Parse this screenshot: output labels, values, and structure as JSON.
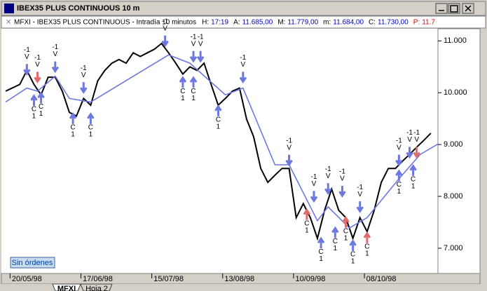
{
  "window": {
    "title": "IBEX35 PLUS CONTINUOUS 10 m"
  },
  "header": {
    "name": "MFXI - IBEX35 PLUS CONTINUOUS - Intradía 10 minutos",
    "fields": [
      {
        "label": "H:",
        "value": "17:19"
      },
      {
        "label": "A:",
        "value": "11.685,00"
      },
      {
        "label": "M:",
        "value": "11.779,00"
      },
      {
        "label": "m:",
        "value": "11.684,00"
      },
      {
        "label": "C:",
        "value": "11.730,00"
      },
      {
        "label": "P:",
        "value": "11.7"
      }
    ]
  },
  "chart_data": {
    "type": "line",
    "xlim": [
      0,
      122
    ],
    "xticks": [
      {
        "value": 6,
        "label": "20/05/98"
      },
      {
        "value": 26,
        "label": "17/06/98"
      },
      {
        "value": 46,
        "label": "15/07/98"
      },
      {
        "value": 66,
        "label": "13/08/98"
      },
      {
        "value": 86,
        "label": "10/09/98"
      },
      {
        "value": 106,
        "label": "08/10/98"
      }
    ],
    "ylim": [
      6540,
      11180
    ],
    "yticks": [
      {
        "value": 7000,
        "label": "7.000"
      },
      {
        "value": 8000,
        "label": "8.000"
      },
      {
        "value": 9000,
        "label": "9.000"
      },
      {
        "value": 10000,
        "label": "10.000"
      },
      {
        "value": 11000,
        "label": "11.000"
      }
    ],
    "series": [
      {
        "color": "#000000",
        "x": [
          0,
          4,
          6,
          8,
          10,
          12,
          14,
          16,
          18,
          20,
          22,
          24,
          26,
          28,
          30,
          32,
          34,
          36,
          38,
          40,
          42,
          44,
          46,
          48,
          50,
          52,
          54,
          56,
          58,
          60,
          62,
          64,
          66,
          68,
          70,
          72,
          74,
          76,
          78,
          80,
          82,
          84,
          86,
          88,
          90,
          92,
          94,
          96,
          98,
          100,
          102,
          104,
          106,
          108,
          110,
          112,
          114,
          116,
          118,
          120
        ],
        "values": [
          10030,
          10160,
          10430,
          10160,
          9960,
          10300,
          10300,
          10030,
          9620,
          9550,
          9890,
          9760,
          10230,
          10430,
          10570,
          10640,
          10570,
          10770,
          10700,
          10770,
          10840,
          10950,
          10770,
          10570,
          10360,
          10500,
          10430,
          10570,
          10160,
          9760,
          9890,
          10030,
          10090,
          9490,
          9150,
          8540,
          8270,
          8410,
          8540,
          8540,
          7590,
          7860,
          7590,
          7190,
          7730,
          8140,
          7730,
          7590,
          7190,
          7590,
          7320,
          7730,
          8270,
          8540,
          8540,
          8680,
          8810,
          8950,
          9080,
          9220
        ]
      },
      {
        "color": "#6c78e0",
        "x": [
          0,
          6,
          9,
          14,
          18,
          24,
          46,
          52,
          62,
          67,
          76,
          80,
          88,
          91,
          97,
          102,
          111,
          117,
          122
        ],
        "values": [
          9820,
          10090,
          10030,
          10320,
          9890,
          9820,
          10730,
          10570,
          9960,
          10090,
          8610,
          8610,
          7530,
          7800,
          7390,
          7590,
          8340,
          8810,
          9010
        ]
      }
    ],
    "signals": [
      {
        "x": 6,
        "value": 10500,
        "text": [
          "-1",
          "V"
        ],
        "color": "#6c78e0"
      },
      {
        "x": 9,
        "value": 10350,
        "text": [
          "-1",
          "V"
        ],
        "color": "#e06c6c"
      },
      {
        "x": 14,
        "value": 10550,
        "text": [
          "-1",
          "V"
        ],
        "color": "#6c78e0"
      },
      {
        "x": 22,
        "value": 10150,
        "text": [
          "-1",
          "V"
        ],
        "color": "#6c78e0"
      },
      {
        "x": 45,
        "value": 11050,
        "text": [
          "-1",
          "V"
        ],
        "color": "#6c78e0"
      },
      {
        "x": 53,
        "value": 10750,
        "text": [
          "-1",
          "V"
        ],
        "color": "#6c78e0"
      },
      {
        "x": 55,
        "value": 10750,
        "text": [
          "-1",
          "V"
        ],
        "color": "#6c78e0"
      },
      {
        "x": 67,
        "value": 10350,
        "text": [
          "-1",
          "V"
        ],
        "color": "#6c78e0"
      },
      {
        "x": 80,
        "value": 8750,
        "text": [
          "-1",
          "V"
        ],
        "color": "#6c78e0"
      },
      {
        "x": 87,
        "value": 8050,
        "text": [
          "-1",
          "V"
        ],
        "color": "#6c78e0"
      },
      {
        "x": 91,
        "value": 8200,
        "text": [
          "-1",
          "V"
        ],
        "color": "#6c78e0"
      },
      {
        "x": 95,
        "value": 8150,
        "text": [
          "-1",
          "V"
        ],
        "color": "#6c78e0"
      },
      {
        "x": 100,
        "value": 7850,
        "text": [
          "-1",
          "V"
        ],
        "color": "#6c78e0"
      },
      {
        "x": 111,
        "value": 8750,
        "text": [
          "-1",
          "V"
        ],
        "color": "#6c78e0"
      },
      {
        "x": 114,
        "value": 8900,
        "text": [
          "-1",
          "V"
        ],
        "color": "#6c78e0"
      },
      {
        "x": 116,
        "value": 8900,
        "text": [
          "-1",
          "V"
        ],
        "color": "#e06c6c"
      },
      {
        "x": 8,
        "value": 9800,
        "text": [
          "C",
          "1"
        ],
        "color": "#6c78e0"
      },
      {
        "x": 10,
        "value": 9850,
        "text": [
          "C",
          "1"
        ],
        "color": "#6c78e0"
      },
      {
        "x": 19,
        "value": 9450,
        "text": [
          "C",
          "1"
        ],
        "color": "#6c78e0"
      },
      {
        "x": 24,
        "value": 9450,
        "text": [
          "C",
          "1"
        ],
        "color": "#6c78e0"
      },
      {
        "x": 50,
        "value": 10150,
        "text": [
          "C",
          "1"
        ],
        "color": "#6c78e0"
      },
      {
        "x": 53,
        "value": 10150,
        "text": [
          "C",
          "1"
        ],
        "color": "#6c78e0"
      },
      {
        "x": 60,
        "value": 9600,
        "text": [
          "C",
          "1"
        ],
        "color": "#6c78e0"
      },
      {
        "x": 85,
        "value": 7600,
        "text": [
          "C",
          "1"
        ],
        "color": "#e06c6c"
      },
      {
        "x": 89,
        "value": 7050,
        "text": [
          "C",
          "1"
        ],
        "color": "#6c78e0"
      },
      {
        "x": 93,
        "value": 7250,
        "text": [
          "C",
          "1"
        ],
        "color": "#6c78e0"
      },
      {
        "x": 96,
        "value": 7450,
        "text": [
          "C",
          "1"
        ],
        "color": "#e06c6c"
      },
      {
        "x": 98,
        "value": 7000,
        "text": [
          "C",
          "1"
        ],
        "color": "#6c78e0"
      },
      {
        "x": 102,
        "value": 7150,
        "text": [
          "C",
          "1"
        ],
        "color": "#e06c6c"
      },
      {
        "x": 111,
        "value": 8350,
        "text": [
          "C",
          "1"
        ],
        "color": "#6c78e0"
      },
      {
        "x": 115,
        "value": 8450,
        "text": [
          "C",
          "1"
        ],
        "color": "#6c78e0"
      }
    ]
  },
  "orders_button": "Sin órdenes",
  "tabs": [
    "MFXI",
    "Hoja 2"
  ]
}
